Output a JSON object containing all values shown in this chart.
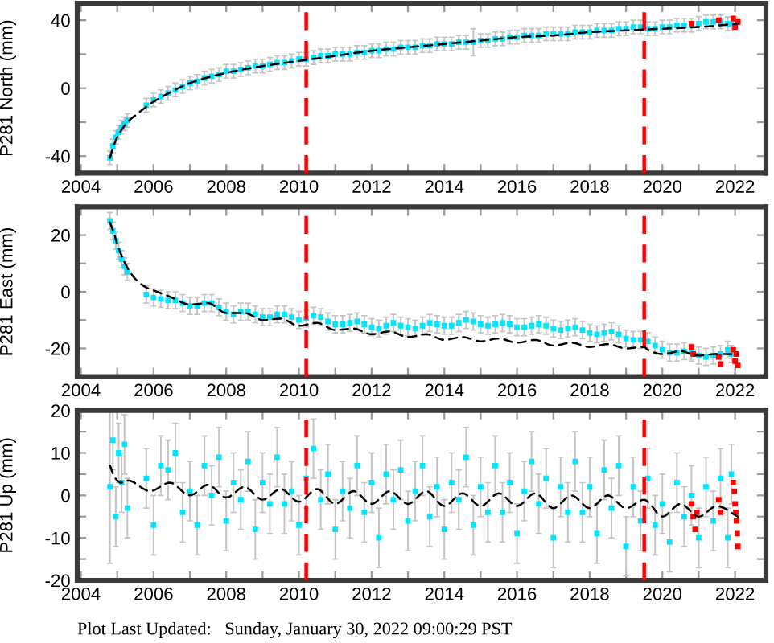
{
  "chart_data": [
    {
      "type": "scatter",
      "ylabel": "P281 North (mm)",
      "xlim": [
        2003.9,
        2022.85
      ],
      "xticks": [
        2004,
        {
          "value": 2005,
          "label": null
        },
        2006,
        {
          "value": 2007,
          "label": null
        },
        2008,
        {
          "value": 2009,
          "label": null
        },
        2010,
        {
          "value": 2011,
          "label": null
        },
        2012,
        {
          "value": 2013,
          "label": null
        },
        2014,
        {
          "value": 2015,
          "label": null
        },
        2016,
        {
          "value": 2017,
          "label": null
        },
        2018,
        {
          "value": 2019,
          "label": null
        },
        2020,
        {
          "value": 2021,
          "label": null
        },
        2022
      ],
      "ylim": [
        -50,
        50
      ],
      "yticks": [
        -40,
        {
          "value": -20,
          "label": null
        },
        0,
        {
          "value": 20,
          "label": null
        },
        40
      ],
      "ref_lines": [
        {
          "axis": "x",
          "value": 2010.2,
          "color": "#ff0000",
          "line_style": "dashed"
        },
        {
          "axis": "x",
          "value": 2019.5,
          "color": "#ff0000",
          "line_style": "dashed"
        }
      ],
      "series": [
        {
          "color": "#00e5ff",
          "marker": "square",
          "x": [
            2004.8,
            2004.88,
            2004.96,
            2005.04,
            2005.12,
            2005.2,
            2005.28,
            2005.8,
            2006,
            2006.2,
            2006.4,
            2006.6,
            2006.8,
            2007,
            2007.2,
            2007.4,
            2007.6,
            2007.8,
            2008,
            2008.2,
            2008.4,
            2008.6,
            2008.8,
            2009,
            2009.2,
            2009.4,
            2009.6,
            2009.8,
            2010,
            2010.2,
            2010.4,
            2010.6,
            2010.8,
            2011,
            2011.2,
            2011.4,
            2011.6,
            2011.8,
            2012,
            2012.2,
            2012.4,
            2012.6,
            2012.8,
            2013,
            2013.2,
            2013.4,
            2013.6,
            2013.8,
            2014,
            2014.2,
            2014.4,
            2014.6,
            2014.8,
            2015,
            2015.2,
            2015.4,
            2015.6,
            2015.8,
            2016,
            2016.2,
            2016.4,
            2016.6,
            2016.8,
            2017,
            2017.2,
            2017.4,
            2017.6,
            2017.8,
            2018,
            2018.2,
            2018.4,
            2018.6,
            2018.8,
            2019,
            2019.2,
            2019.4,
            2019.6,
            2019.8,
            2020,
            2020.2,
            2020.4,
            2020.6,
            2020.8,
            2021,
            2021.2,
            2021.4,
            2021.6,
            2021.8,
            2021.9
          ],
          "values": [
            -41,
            -34,
            -29,
            -26,
            -23,
            -21,
            -19,
            -10,
            -7,
            -5,
            -3,
            -1,
            1,
            3,
            4,
            6,
            7,
            8,
            10,
            10,
            11,
            12,
            13,
            13,
            14,
            15,
            15,
            16,
            17,
            17,
            18,
            19,
            19,
            20,
            20,
            20,
            21,
            21,
            22,
            22,
            23,
            23,
            24,
            24,
            24,
            25,
            25,
            26,
            26,
            26,
            27,
            27,
            27,
            28,
            28,
            29,
            29,
            30,
            30,
            31,
            31,
            31,
            32,
            32,
            32,
            32,
            33,
            33,
            33,
            34,
            34,
            34,
            35,
            35,
            36,
            36,
            35,
            35,
            36,
            36,
            37,
            37,
            37,
            38,
            39,
            39,
            39,
            38,
            38
          ],
          "errors": [
            4,
            4,
            4,
            4,
            4,
            4,
            4,
            4,
            4,
            4,
            4,
            4,
            4,
            4,
            4,
            4,
            4,
            4,
            4,
            4,
            4,
            4,
            4,
            4,
            4,
            4,
            4,
            4,
            4,
            4,
            4,
            4,
            4,
            4,
            4,
            4,
            4,
            4,
            4,
            4,
            4,
            4,
            4,
            4,
            4,
            4,
            4,
            4,
            4,
            4,
            4,
            4,
            8,
            4,
            4,
            4,
            4,
            4,
            4,
            4,
            4,
            4,
            4,
            4,
            4,
            4,
            4,
            4,
            4,
            4,
            4,
            4,
            4,
            4,
            4,
            4,
            4,
            4,
            4,
            4,
            4,
            4,
            4,
            4,
            4,
            4,
            4,
            4,
            4
          ]
        },
        {
          "color": "#ff0000",
          "marker": "square",
          "x": [
            2020.8,
            2021.55,
            2021.95,
            2022,
            2022.08
          ],
          "values": [
            38,
            40,
            41,
            36,
            39
          ]
        },
        {
          "type": "line",
          "color": "#000000",
          "line_style": "dashed",
          "x": [
            2004.8,
            2004.9,
            2005.05,
            2005.28,
            2005.5,
            2005.8,
            2006,
            2006.5,
            2007,
            2008,
            2009,
            2010,
            2011,
            2012,
            2013,
            2014,
            2015,
            2016,
            2017,
            2018,
            2019,
            2020,
            2021,
            2022.08
          ],
          "values": [
            -41,
            -34,
            -27,
            -20,
            -16,
            -11,
            -8,
            -2,
            3,
            9,
            13,
            16,
            19,
            22,
            24,
            26,
            28,
            30,
            31,
            33,
            34,
            35,
            36,
            38
          ]
        }
      ]
    },
    {
      "type": "scatter",
      "ylabel": "P281 East (mm)",
      "xlim": [
        2003.9,
        2022.85
      ],
      "xticks": [
        2004,
        {
          "value": 2005,
          "label": null
        },
        2006,
        {
          "value": 2007,
          "label": null
        },
        2008,
        {
          "value": 2009,
          "label": null
        },
        2010,
        {
          "value": 2011,
          "label": null
        },
        2012,
        {
          "value": 2013,
          "label": null
        },
        2014,
        {
          "value": 2015,
          "label": null
        },
        2016,
        {
          "value": 2017,
          "label": null
        },
        2018,
        {
          "value": 2019,
          "label": null
        },
        2020,
        {
          "value": 2021,
          "label": null
        },
        2022
      ],
      "ylim": [
        -30,
        30
      ],
      "yticks": [
        -20,
        {
          "value": -10,
          "label": null
        },
        0,
        {
          "value": 10,
          "label": null
        },
        20
      ],
      "ref_lines": [
        {
          "axis": "x",
          "value": 2010.2,
          "color": "#ff0000",
          "line_style": "dashed"
        },
        {
          "axis": "x",
          "value": 2019.5,
          "color": "#ff0000",
          "line_style": "dashed"
        }
      ],
      "series": [
        {
          "color": "#00e5ff",
          "marker": "square",
          "x": [
            2004.8,
            2004.88,
            2004.96,
            2005.04,
            2005.12,
            2005.2,
            2005.28,
            2005.8,
            2006,
            2006.2,
            2006.4,
            2006.6,
            2006.8,
            2007,
            2007.2,
            2007.4,
            2007.6,
            2007.8,
            2008,
            2008.2,
            2008.4,
            2008.6,
            2008.8,
            2009,
            2009.2,
            2009.4,
            2009.6,
            2009.8,
            2010,
            2010.2,
            2010.4,
            2010.6,
            2010.8,
            2011,
            2011.2,
            2011.4,
            2011.6,
            2011.8,
            2012,
            2012.2,
            2012.4,
            2012.6,
            2012.8,
            2013,
            2013.2,
            2013.4,
            2013.6,
            2013.8,
            2014,
            2014.2,
            2014.4,
            2014.6,
            2014.8,
            2015,
            2015.2,
            2015.4,
            2015.6,
            2015.8,
            2016,
            2016.2,
            2016.4,
            2016.6,
            2016.8,
            2017,
            2017.2,
            2017.4,
            2017.6,
            2017.8,
            2018,
            2018.2,
            2018.4,
            2018.6,
            2018.8,
            2019,
            2019.2,
            2019.4,
            2019.6,
            2019.8,
            2020,
            2020.2,
            2020.4,
            2020.6,
            2020.8,
            2021,
            2021.2,
            2021.4,
            2021.6,
            2021.8,
            2021.9
          ],
          "values": [
            25,
            21.5,
            18,
            14.5,
            11.5,
            9,
            7,
            -1,
            -2,
            -2.5,
            -3,
            -3,
            -4,
            -5,
            -5,
            -4,
            -4,
            -5.5,
            -7,
            -8,
            -7,
            -7,
            -8,
            -9,
            -9,
            -8,
            -8,
            -9,
            -10,
            -9.5,
            -8.5,
            -9,
            -10.5,
            -11.5,
            -11.5,
            -11,
            -10.5,
            -11.5,
            -12.5,
            -13,
            -12,
            -11,
            -12,
            -12.5,
            -13,
            -12,
            -11,
            -11.5,
            -12,
            -12,
            -11,
            -10,
            -10.5,
            -11.5,
            -12,
            -11.5,
            -11,
            -11.5,
            -12.5,
            -12.5,
            -12,
            -11.5,
            -12,
            -13,
            -13.5,
            -13,
            -12.5,
            -13.5,
            -14.5,
            -15,
            -14.5,
            -14,
            -15,
            -16.5,
            -17,
            -17,
            -17.5,
            -19,
            -20.5,
            -21.5,
            -21.5,
            -21,
            -21.5,
            -22.5,
            -23,
            -22.5,
            -22,
            -20.5,
            -22
          ],
          "errors": [
            3,
            3,
            3,
            3,
            3,
            3,
            3,
            3,
            3,
            3,
            3,
            3,
            3,
            3,
            3,
            3,
            3,
            3,
            3,
            3,
            3,
            3,
            3,
            3,
            3,
            3,
            3,
            3,
            3,
            3,
            3,
            3,
            3,
            3,
            3,
            3,
            3,
            3,
            3,
            3,
            3,
            3,
            3,
            3,
            3,
            3,
            3,
            3,
            3,
            3,
            3,
            3,
            3,
            3,
            3,
            3,
            3,
            3,
            3,
            3,
            3,
            3,
            3,
            3,
            3,
            3,
            3,
            3,
            3,
            3,
            3,
            3,
            3,
            3,
            3,
            3,
            3,
            3,
            3,
            3,
            3,
            3,
            3,
            3,
            3,
            3,
            3,
            3,
            3
          ]
        },
        {
          "color": "#ff0000",
          "marker": "square",
          "x": [
            2020.8,
            2020.85,
            2021.55,
            2021.6,
            2021.95,
            2022,
            2022.04,
            2022.08
          ],
          "values": [
            -19.5,
            -22,
            -23,
            -25.5,
            -20.5,
            -24.5,
            -22,
            -26
          ]
        },
        {
          "type": "line",
          "color": "#000000",
          "line_style": "dashed",
          "x": [
            2004.8,
            2004.9,
            2005.05,
            2005.28,
            2005.5,
            2005.8,
            2006,
            2006.5,
            2007,
            2007.5,
            2008,
            2008.5,
            2009,
            2009.5,
            2010,
            2010.5,
            2011,
            2011.5,
            2012,
            2012.5,
            2013,
            2013.5,
            2014,
            2014.5,
            2015,
            2015.5,
            2016,
            2016.5,
            2017,
            2017.5,
            2018,
            2018.5,
            2019,
            2019.5,
            2019.6,
            2020,
            2020.5,
            2021,
            2021.5,
            2022.08
          ],
          "values": [
            24.5,
            21,
            15,
            8.5,
            4.5,
            1.5,
            0.5,
            -2,
            -4.5,
            -4,
            -7.5,
            -7.5,
            -10,
            -9.5,
            -12,
            -11,
            -13.5,
            -13,
            -15,
            -14,
            -16,
            -15,
            -17,
            -16,
            -17.5,
            -16.5,
            -18,
            -17,
            -19,
            -18,
            -19.5,
            -18.5,
            -20,
            -19.5,
            -20.5,
            -22,
            -21,
            -22.5,
            -22,
            -22
          ]
        }
      ]
    },
    {
      "type": "scatter",
      "ylabel": "P281 Up (mm)",
      "xlim": [
        2003.9,
        2022.85
      ],
      "xticks": [
        2004,
        {
          "value": 2005,
          "label": null
        },
        2006,
        {
          "value": 2007,
          "label": null
        },
        2008,
        {
          "value": 2009,
          "label": null
        },
        2010,
        {
          "value": 2011,
          "label": null
        },
        2012,
        {
          "value": 2013,
          "label": null
        },
        2014,
        {
          "value": 2015,
          "label": null
        },
        2016,
        {
          "value": 2017,
          "label": null
        },
        2018,
        {
          "value": 2019,
          "label": null
        },
        2020,
        {
          "value": 2021,
          "label": null
        },
        2022
      ],
      "ylim": [
        -20,
        20
      ],
      "yticks": [
        -20,
        {
          "value": -15,
          "label": null
        },
        -10,
        {
          "value": -5,
          "label": null
        },
        0,
        {
          "value": 5,
          "label": null
        },
        10,
        {
          "value": 15,
          "label": null
        },
        20
      ],
      "ref_lines": [
        {
          "axis": "x",
          "value": 2010.2,
          "color": "#ff0000",
          "line_style": "dashed"
        },
        {
          "axis": "x",
          "value": 2019.5,
          "color": "#ff0000",
          "line_style": "dashed"
        }
      ],
      "annotations": [
        "Plot Last Updated:   Sunday, January 30, 2022 09:00:29 PST"
      ],
      "series": [
        {
          "color": "#00e5ff",
          "marker": "square",
          "x": [
            2004.8,
            2004.88,
            2004.96,
            2005.04,
            2005.12,
            2005.2,
            2005.28,
            2005.8,
            2006,
            2006.2,
            2006.4,
            2006.6,
            2006.8,
            2007,
            2007.2,
            2007.4,
            2007.6,
            2007.8,
            2008,
            2008.2,
            2008.4,
            2008.6,
            2008.8,
            2009,
            2009.2,
            2009.4,
            2009.6,
            2009.8,
            2010,
            2010.2,
            2010.4,
            2010.6,
            2010.8,
            2011,
            2011.2,
            2011.4,
            2011.6,
            2011.8,
            2012,
            2012.2,
            2012.4,
            2012.6,
            2012.8,
            2013,
            2013.2,
            2013.4,
            2013.6,
            2013.8,
            2014,
            2014.2,
            2014.4,
            2014.6,
            2014.8,
            2015,
            2015.2,
            2015.4,
            2015.6,
            2015.8,
            2016,
            2016.2,
            2016.4,
            2016.6,
            2016.8,
            2017,
            2017.2,
            2017.4,
            2017.6,
            2017.8,
            2018,
            2018.2,
            2018.4,
            2018.6,
            2018.8,
            2019,
            2019.2,
            2019.4,
            2019.6,
            2019.8,
            2020,
            2020.2,
            2020.4,
            2020.6,
            2020.8,
            2021,
            2021.2,
            2021.4,
            2021.6,
            2021.8,
            2021.9
          ],
          "values": [
            2,
            13,
            -5,
            10,
            3,
            12,
            -3,
            4,
            -7,
            7,
            6,
            10,
            -4,
            1,
            -7,
            7,
            0,
            9,
            -6,
            3,
            -1,
            8,
            -8,
            3,
            -2,
            9,
            -2,
            1,
            -7,
            4,
            11,
            -1,
            5,
            -8,
            1,
            -3,
            7,
            -4,
            3,
            -10,
            5,
            -1,
            6,
            -6,
            1,
            7,
            -5,
            2,
            -8,
            3,
            -1,
            9,
            -7,
            2,
            -4,
            7,
            -4,
            3,
            -9,
            1,
            8,
            -2,
            4,
            -10,
            2,
            -4,
            8,
            -4,
            2,
            -9,
            6,
            -3,
            7,
            -12,
            2,
            -6,
            4,
            -7,
            -2,
            -11,
            3,
            -5,
            0,
            -10,
            2,
            -6,
            4,
            -10,
            5
          ],
          "errors": [
            18,
            7,
            7,
            7,
            7,
            7,
            7,
            7,
            7,
            7,
            7,
            7,
            7,
            7,
            7,
            7,
            7,
            7,
            7,
            7,
            7,
            7,
            7,
            7,
            7,
            7,
            7,
            7,
            7,
            7,
            7,
            7,
            7,
            7,
            7,
            7,
            7,
            7,
            7,
            7,
            7,
            7,
            7,
            7,
            7,
            7,
            7,
            7,
            7,
            7,
            7,
            7,
            7,
            7,
            7,
            7,
            7,
            7,
            7,
            7,
            7,
            7,
            7,
            7,
            7,
            7,
            7,
            7,
            7,
            7,
            7,
            7,
            7,
            7,
            7,
            7,
            7,
            7,
            7,
            7,
            7,
            7,
            7,
            7,
            7,
            7,
            7,
            7,
            7
          ]
        },
        {
          "color": "#ff0000",
          "marker": "square",
          "x": [
            2020.8,
            2020.85,
            2020.9,
            2020.95,
            2021.55,
            2021.6,
            2021.95,
            2021.98,
            2022,
            2022.02,
            2022.04,
            2022.06,
            2022.08
          ],
          "values": [
            -2,
            -5,
            -8,
            -4,
            -1,
            -4,
            3,
            1,
            -2,
            -4,
            -6,
            -9,
            -12
          ]
        },
        {
          "type": "line",
          "color": "#000000",
          "line_style": "dashed",
          "x": [
            2004.8,
            2004.95,
            2005.1,
            2005.3,
            2005.9,
            2006.45,
            2007,
            2007.5,
            2008,
            2008.5,
            2009,
            2009.5,
            2010,
            2010.5,
            2011,
            2011.5,
            2012,
            2012.5,
            2013,
            2013.5,
            2014,
            2014.5,
            2015,
            2015.5,
            2016,
            2016.5,
            2017,
            2017.5,
            2018,
            2018.5,
            2019,
            2019.5,
            2019.6,
            2020,
            2020.5,
            2021,
            2021.5,
            2022.08
          ],
          "values": [
            7,
            4,
            3,
            3.5,
            1,
            3,
            0,
            2.5,
            -0.5,
            2,
            -1,
            1.5,
            -1.5,
            1.5,
            -2,
            1,
            -2,
            1,
            -2,
            1,
            -2.5,
            0.5,
            -2.5,
            0.5,
            -2.5,
            0.5,
            -3,
            0,
            -3,
            0,
            -3,
            -1,
            -1.5,
            -5,
            -2,
            -5,
            -2.5,
            -5
          ]
        }
      ]
    }
  ]
}
